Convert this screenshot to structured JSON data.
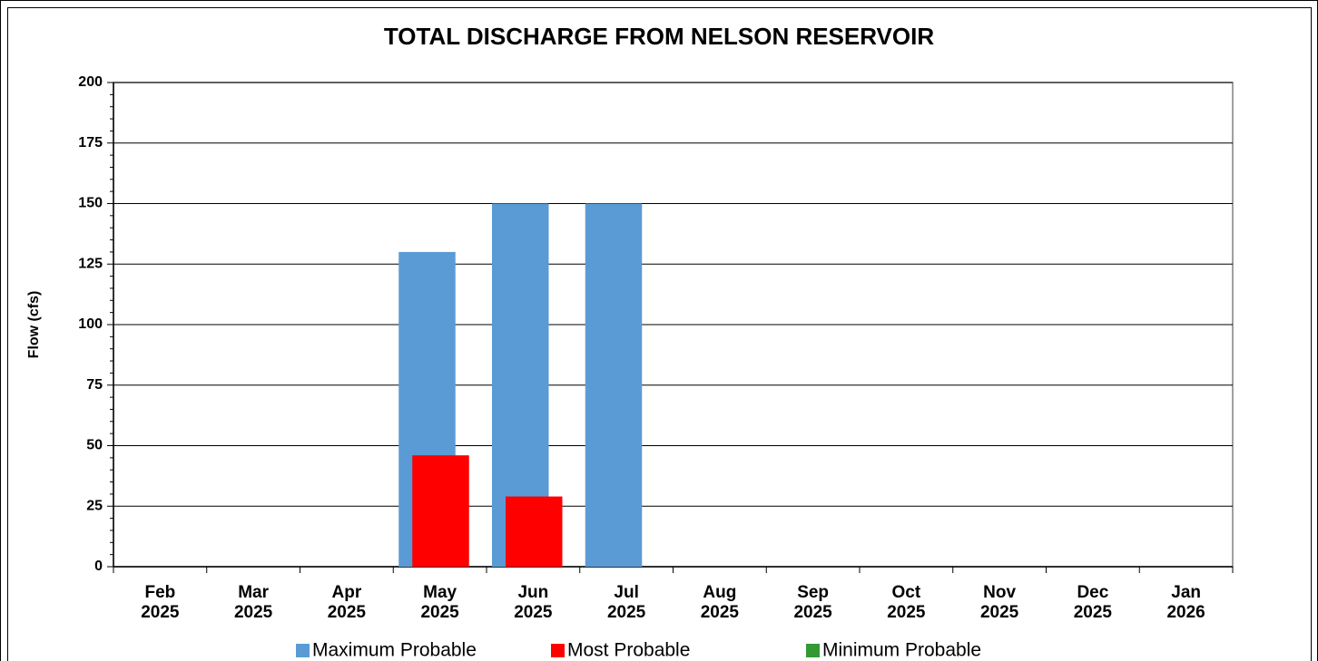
{
  "chart_data": {
    "type": "bar",
    "title": "TOTAL DISCHARGE FROM NELSON RESERVOIR",
    "y_label": "Flow (cfs)",
    "categories": [
      "Feb 2025",
      "Mar 2025",
      "Apr 2025",
      "May 2025",
      "Jun 2025",
      "Jul 2025",
      "Aug 2025",
      "Sep 2025",
      "Oct 2025",
      "Nov 2025",
      "Dec 2025",
      "Jan 2026"
    ],
    "series": [
      {
        "name": "Maximum Probable",
        "color": "#5b9bd5",
        "values": [
          null,
          null,
          null,
          130,
          150,
          150,
          null,
          null,
          null,
          null,
          null,
          null
        ]
      },
      {
        "name": "Most Probable",
        "color": "#ff0000",
        "values": [
          null,
          null,
          null,
          46,
          29,
          null,
          null,
          null,
          null,
          null,
          null,
          null
        ]
      },
      {
        "name": "Minimum Probable",
        "color": "#339933",
        "values": [
          null,
          null,
          null,
          null,
          null,
          null,
          null,
          null,
          null,
          null,
          null,
          null
        ]
      }
    ],
    "ylim": [
      0,
      200
    ],
    "yticks": [
      0,
      25,
      50,
      75,
      100,
      125,
      150,
      175,
      200
    ],
    "grid": true
  }
}
